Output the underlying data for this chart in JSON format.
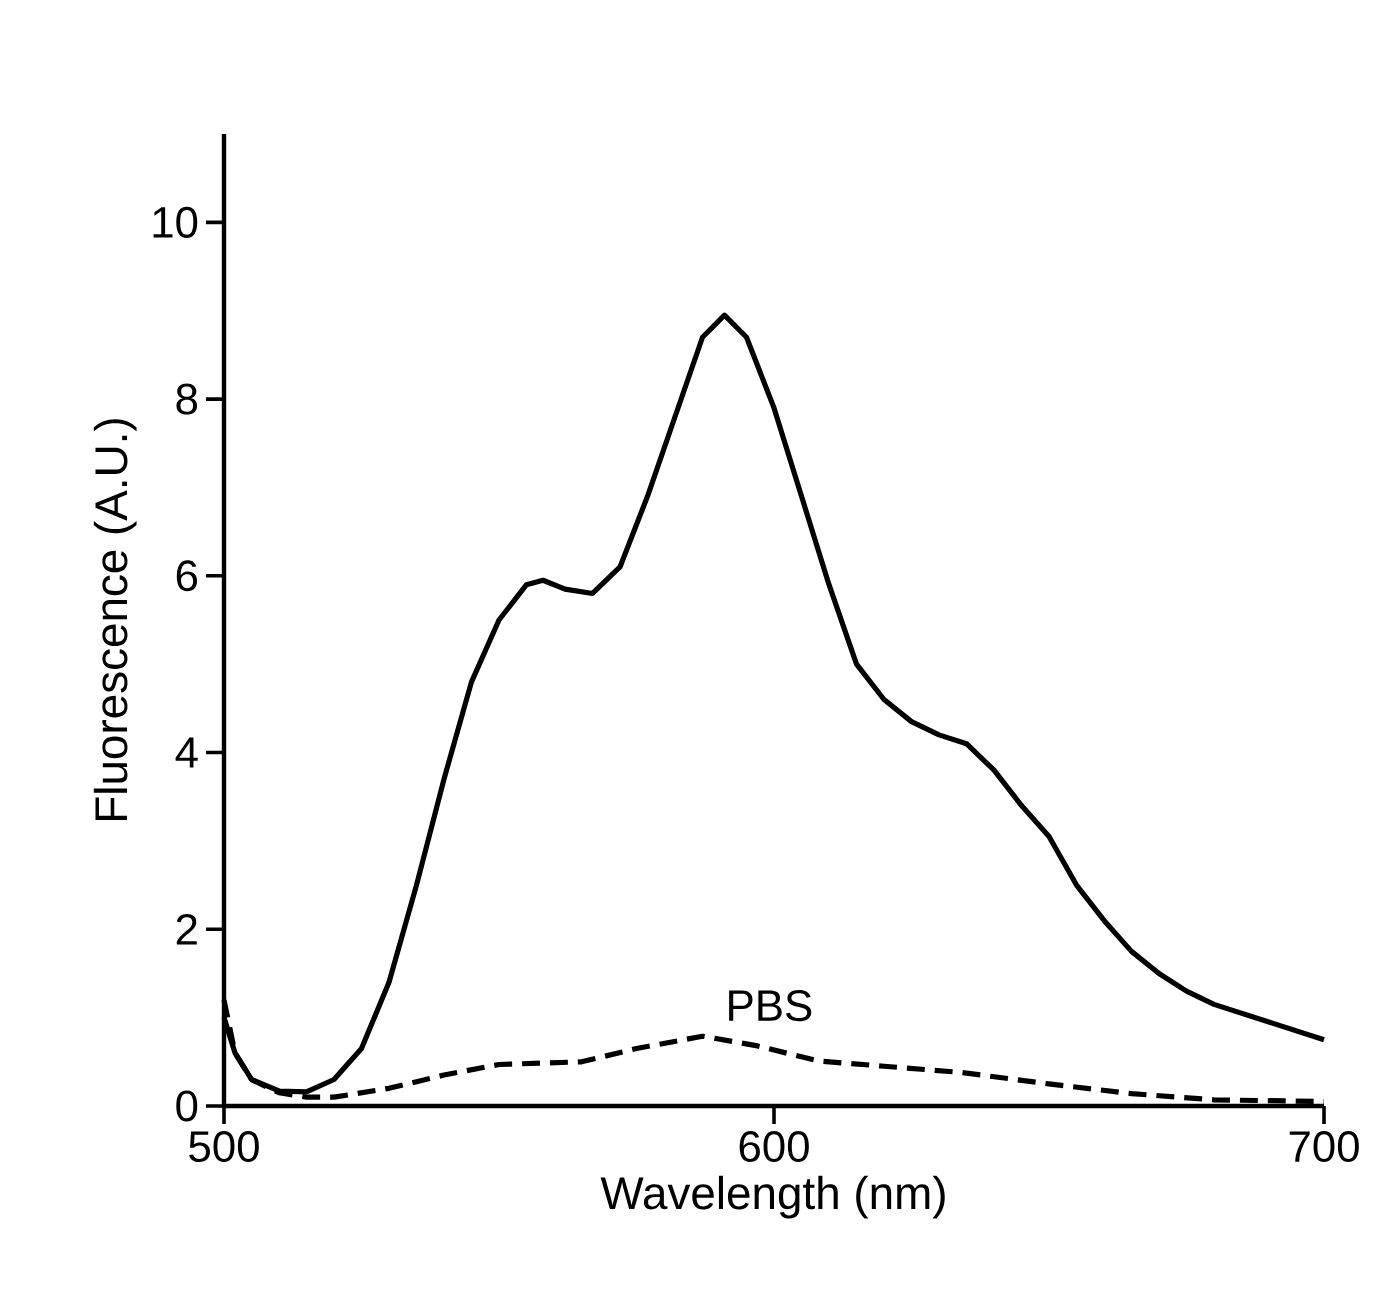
{
  "chart_data": {
    "type": "line",
    "xlabel": "Wavelength (nm)",
    "ylabel": "Fluorescence (A.U.)",
    "xlim": [
      500,
      700
    ],
    "ylim": [
      0,
      11
    ],
    "xticks": [
      500,
      600,
      700
    ],
    "yticks": [
      0,
      2,
      4,
      6,
      8,
      10
    ],
    "grid": false,
    "legend": false,
    "marker": "none",
    "series": [
      {
        "color": "#000000",
        "line_style": "solid",
        "x": [
          500,
          502,
          505,
          510,
          515,
          520,
          525,
          530,
          535,
          540,
          545,
          550,
          555,
          558,
          562,
          567,
          572,
          577,
          582,
          587,
          591,
          595,
          600,
          605,
          610,
          615,
          620,
          625,
          630,
          635,
          640,
          645,
          650,
          655,
          660,
          665,
          670,
          675,
          680,
          690,
          700
        ],
        "values": [
          1.0,
          0.6,
          0.3,
          0.17,
          0.16,
          0.3,
          0.65,
          1.4,
          2.5,
          3.7,
          4.8,
          5.5,
          5.9,
          5.95,
          5.85,
          5.8,
          6.1,
          6.9,
          7.8,
          8.7,
          8.95,
          8.7,
          7.9,
          6.9,
          5.9,
          5.0,
          4.6,
          4.35,
          4.2,
          4.1,
          3.8,
          3.4,
          3.05,
          2.5,
          2.1,
          1.75,
          1.5,
          1.3,
          1.15,
          0.95,
          0.75
        ]
      },
      {
        "name": "PBS",
        "color": "#000000",
        "line_style": "dashed",
        "x": [
          500,
          502,
          505,
          510,
          515,
          520,
          530,
          540,
          550,
          565,
          575,
          587,
          597,
          608,
          620,
          634,
          650,
          665,
          680,
          700
        ],
        "values": [
          1.2,
          0.6,
          0.3,
          0.15,
          0.1,
          0.1,
          0.2,
          0.35,
          0.47,
          0.5,
          0.65,
          0.79,
          0.68,
          0.51,
          0.45,
          0.38,
          0.25,
          0.14,
          0.07,
          0.05
        ]
      }
    ]
  }
}
